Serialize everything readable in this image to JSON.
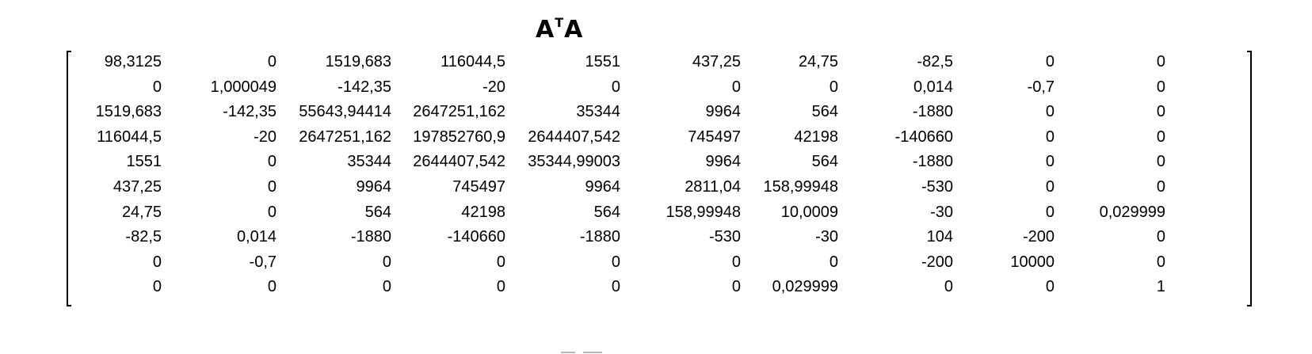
{
  "title": {
    "base1": "A",
    "superscript": "T",
    "base2": "A"
  },
  "matrix": {
    "rows": [
      [
        "98,3125",
        "0",
        "1519,683",
        "116044,5",
        "1551",
        "437,25",
        "24,75",
        "-82,5",
        "0",
        "0"
      ],
      [
        "0",
        "1,000049",
        "-142,35",
        "-20",
        "0",
        "0",
        "0",
        "0,014",
        "-0,7",
        "0"
      ],
      [
        "1519,683",
        "-142,35",
        "55643,94414",
        "2647251,162",
        "35344",
        "9964",
        "564",
        "-1880",
        "0",
        "0"
      ],
      [
        "116044,5",
        "-20",
        "2647251,162",
        "197852760,9",
        "2644407,542",
        "745497",
        "42198",
        "-140660",
        "0",
        "0"
      ],
      [
        "1551",
        "0",
        "35344",
        "2644407,542",
        "35344,99003",
        "9964",
        "564",
        "-1880",
        "0",
        "0"
      ],
      [
        "437,25",
        "0",
        "9964",
        "745497",
        "9964",
        "2811,04",
        "158,99948",
        "-530",
        "0",
        "0"
      ],
      [
        "24,75",
        "0",
        "564",
        "42198",
        "564",
        "158,99948",
        "10,0009",
        "-30",
        "0",
        "0,029999"
      ],
      [
        "-82,5",
        "0,014",
        "-1880",
        "-140660",
        "-1880",
        "-530",
        "-30",
        "104",
        "-200",
        "0"
      ],
      [
        "0",
        "-0,7",
        "0",
        "0",
        "0",
        "0",
        "0",
        "-200",
        "10000",
        "0"
      ],
      [
        "0",
        "0",
        "0",
        "0",
        "0",
        "0",
        "0,029999",
        "0",
        "0",
        "1"
      ]
    ]
  }
}
